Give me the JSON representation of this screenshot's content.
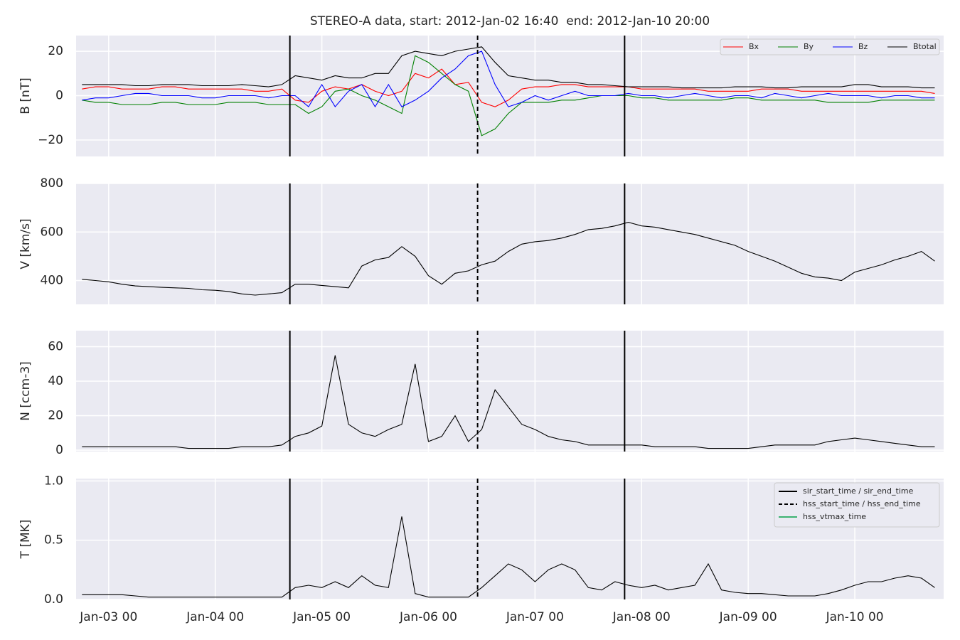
{
  "chart_data": {
    "type": "line",
    "title": "STEREO-A data, start: 2012-Jan-02 16:40  end: 2012-Jan-10 20:00",
    "xlim": [
      "2012-01-02 16:40",
      "2012-01-10 20:00"
    ],
    "xticks": [
      {
        "value": "2012-01-03 00:00",
        "label": "Jan-03 00"
      },
      {
        "value": "2012-01-04 00:00",
        "label": "Jan-04 00"
      },
      {
        "value": "2012-01-05 00:00",
        "label": "Jan-05 00"
      },
      {
        "value": "2012-01-06 00:00",
        "label": "Jan-06 00"
      },
      {
        "value": "2012-01-07 00:00",
        "label": "Jan-07 00"
      },
      {
        "value": "2012-01-08 00:00",
        "label": "Jan-08 00"
      },
      {
        "value": "2012-01-09 00:00",
        "label": "Jan-09 00"
      },
      {
        "value": "2012-01-10 00:00",
        "label": "Jan-10 00"
      }
    ],
    "grid": true,
    "x": [
      "2012-01-02 18:00",
      "2012-01-02 21:00",
      "2012-01-03 00:00",
      "2012-01-03 03:00",
      "2012-01-03 06:00",
      "2012-01-03 09:00",
      "2012-01-03 12:00",
      "2012-01-03 15:00",
      "2012-01-03 18:00",
      "2012-01-03 21:00",
      "2012-01-04 00:00",
      "2012-01-04 03:00",
      "2012-01-04 06:00",
      "2012-01-04 09:00",
      "2012-01-04 12:00",
      "2012-01-04 15:00",
      "2012-01-04 18:00",
      "2012-01-04 21:00",
      "2012-01-05 00:00",
      "2012-01-05 03:00",
      "2012-01-05 06:00",
      "2012-01-05 09:00",
      "2012-01-05 12:00",
      "2012-01-05 15:00",
      "2012-01-05 18:00",
      "2012-01-05 21:00",
      "2012-01-06 00:00",
      "2012-01-06 03:00",
      "2012-01-06 06:00",
      "2012-01-06 09:00",
      "2012-01-06 12:00",
      "2012-01-06 15:00",
      "2012-01-06 18:00",
      "2012-01-06 21:00",
      "2012-01-07 00:00",
      "2012-01-07 03:00",
      "2012-01-07 06:00",
      "2012-01-07 09:00",
      "2012-01-07 12:00",
      "2012-01-07 15:00",
      "2012-01-07 18:00",
      "2012-01-07 21:00",
      "2012-01-08 00:00",
      "2012-01-08 03:00",
      "2012-01-08 06:00",
      "2012-01-08 09:00",
      "2012-01-08 12:00",
      "2012-01-08 15:00",
      "2012-01-08 18:00",
      "2012-01-08 21:00",
      "2012-01-09 00:00",
      "2012-01-09 03:00",
      "2012-01-09 06:00",
      "2012-01-09 09:00",
      "2012-01-09 12:00",
      "2012-01-09 15:00",
      "2012-01-09 18:00",
      "2012-01-09 21:00",
      "2012-01-10 00:00",
      "2012-01-10 03:00",
      "2012-01-10 06:00",
      "2012-01-10 09:00",
      "2012-01-10 12:00",
      "2012-01-10 15:00",
      "2012-01-10 18:00"
    ],
    "events": [
      {
        "name": "sir_start_time / sir_end_time",
        "color": "#000000",
        "style": "solid",
        "times": [
          "2012-01-04 16:48",
          "2012-01-07 20:10"
        ]
      },
      {
        "name": "hss_start_time / hss_end_time",
        "color": "#000000",
        "style": "dashed",
        "times": [
          "2012-01-06 11:04"
        ]
      },
      {
        "name": "hss_vtmax_time",
        "color": "#3cb371",
        "style": "solid"
      }
    ],
    "panels": [
      {
        "ylabel": "B [nT]",
        "ylim": [
          -27.4,
          27.1
        ],
        "yticks": [
          {
            "value": -20,
            "label": "−20"
          },
          0,
          20
        ],
        "legend": "upper right",
        "series": [
          {
            "name": "Bx",
            "color": "#ff0000",
            "values": [
              3,
              4,
              4,
              3,
              3,
              3,
              4,
              4,
              3,
              3,
              3,
              3,
              3,
              2,
              2,
              3,
              -2,
              -3,
              2,
              4,
              3,
              5,
              2,
              0,
              2,
              10,
              8,
              12,
              5,
              6,
              -3,
              -5,
              -2,
              3,
              4,
              4,
              5,
              5,
              4,
              4,
              4,
              4,
              3,
              3,
              3,
              3,
              3,
              2,
              2,
              2,
              2,
              3,
              3,
              3,
              2,
              2,
              2,
              2,
              2,
              2,
              2,
              2,
              2,
              2,
              1
            ]
          },
          {
            "name": "By",
            "color": "#008000",
            "values": [
              -2,
              -3,
              -3,
              -4,
              -4,
              -4,
              -3,
              -3,
              -4,
              -4,
              -4,
              -3,
              -3,
              -3,
              -4,
              -4,
              -4,
              -8,
              -5,
              2,
              3,
              0,
              -2,
              -5,
              -8,
              18,
              15,
              10,
              5,
              2,
              -18,
              -15,
              -8,
              -3,
              -3,
              -3,
              -2,
              -2,
              -1,
              0,
              0,
              0,
              -1,
              -1,
              -2,
              -2,
              -2,
              -2,
              -2,
              -1,
              -1,
              -2,
              -2,
              -2,
              -2,
              -2,
              -3,
              -3,
              -3,
              -3,
              -2,
              -2,
              -2,
              -2,
              -2
            ]
          },
          {
            "name": "Bz",
            "color": "#0000ff",
            "values": [
              -2,
              -1,
              -1,
              0,
              1,
              1,
              0,
              0,
              0,
              -1,
              -1,
              0,
              0,
              0,
              -1,
              0,
              0,
              -5,
              5,
              -5,
              2,
              5,
              -5,
              5,
              -5,
              -2,
              2,
              8,
              12,
              18,
              20,
              5,
              -5,
              -3,
              0,
              -2,
              0,
              2,
              0,
              0,
              0,
              1,
              0,
              0,
              -1,
              0,
              1,
              0,
              -1,
              0,
              0,
              -1,
              1,
              0,
              -1,
              0,
              1,
              0,
              0,
              0,
              -1,
              0,
              0,
              -1,
              -1
            ]
          },
          {
            "name": "Btotal",
            "color": "#000000",
            "values": [
              5,
              5,
              5,
              5,
              4.5,
              4.5,
              5,
              5,
              5,
              4.5,
              4.5,
              4.5,
              5,
              4.5,
              4,
              5,
              9,
              8,
              7,
              9,
              8,
              8,
              10,
              10,
              18,
              20,
              19,
              18,
              20,
              21,
              22,
              15,
              9,
              8,
              7,
              7,
              6,
              6,
              5,
              5,
              4.5,
              4,
              4,
              4,
              4,
              3.5,
              3.5,
              3.5,
              3.5,
              4,
              4,
              4,
              3.5,
              3.5,
              4,
              4,
              4,
              4,
              5,
              5,
              4,
              4,
              4,
              3.5,
              3.5
            ]
          }
        ]
      },
      {
        "ylabel": "V [km/s]",
        "ylim": [
          302,
          800
        ],
        "yticks": [
          400,
          600,
          800
        ],
        "series": [
          {
            "color": "#000000",
            "values": [
              405,
              400,
              395,
              385,
              378,
              375,
              372,
              370,
              368,
              362,
              360,
              355,
              345,
              340,
              345,
              350,
              385,
              385,
              380,
              375,
              370,
              460,
              485,
              495,
              540,
              500,
              420,
              385,
              430,
              440,
              465,
              480,
              520,
              550,
              560,
              565,
              575,
              590,
              610,
              615,
              625,
              640,
              625,
              620,
              610,
              600,
              590,
              575,
              560,
              545,
              520,
              500,
              480,
              455,
              430,
              415,
              410,
              400,
              435,
              450,
              465,
              485,
              500,
              520,
              480
            ]
          }
        ]
      },
      {
        "ylabel": "N [ccm-3]",
        "ylim": [
          -0.8,
          69.3
        ],
        "yticks": [
          0,
          20,
          40,
          60
        ],
        "series": [
          {
            "color": "#000000",
            "values": [
              2,
              2,
              2,
              2,
              2,
              2,
              2,
              2,
              1,
              1,
              1,
              1,
              2,
              2,
              2,
              3,
              8,
              10,
              14,
              55,
              15,
              10,
              8,
              12,
              15,
              50,
              5,
              8,
              20,
              5,
              12,
              35,
              25,
              15,
              12,
              8,
              6,
              5,
              3,
              3,
              3,
              3,
              3,
              2,
              2,
              2,
              2,
              1,
              1,
              1,
              1,
              2,
              3,
              3,
              3,
              3,
              5,
              6,
              7,
              6,
              5,
              4,
              3,
              2,
              2
            ]
          }
        ]
      },
      {
        "ylabel": "T [MK]",
        "ylim": [
          0,
          1.02
        ],
        "yticks": [
          {
            "value": 0,
            "label": "0.0"
          },
          {
            "value": 0.5,
            "label": "0.5"
          },
          {
            "value": 1,
            "label": "1.0"
          }
        ],
        "legend": "upper right",
        "legend_source": "events",
        "series": [
          {
            "color": "#000000",
            "values": [
              0.04,
              0.04,
              0.04,
              0.04,
              0.03,
              0.02,
              0.02,
              0.02,
              0.02,
              0.02,
              0.02,
              0.02,
              0.02,
              0.02,
              0.02,
              0.02,
              0.1,
              0.12,
              0.1,
              0.15,
              0.1,
              0.2,
              0.12,
              0.1,
              0.7,
              0.05,
              0.02,
              0.02,
              0.02,
              0.02,
              0.1,
              0.2,
              0.3,
              0.25,
              0.15,
              0.25,
              0.3,
              0.25,
              0.1,
              0.08,
              0.15,
              0.12,
              0.1,
              0.12,
              0.08,
              0.1,
              0.12,
              0.3,
              0.08,
              0.06,
              0.05,
              0.05,
              0.04,
              0.03,
              0.03,
              0.03,
              0.05,
              0.08,
              0.12,
              0.15,
              0.15,
              0.18,
              0.2,
              0.18,
              0.1
            ]
          }
        ]
      }
    ]
  }
}
